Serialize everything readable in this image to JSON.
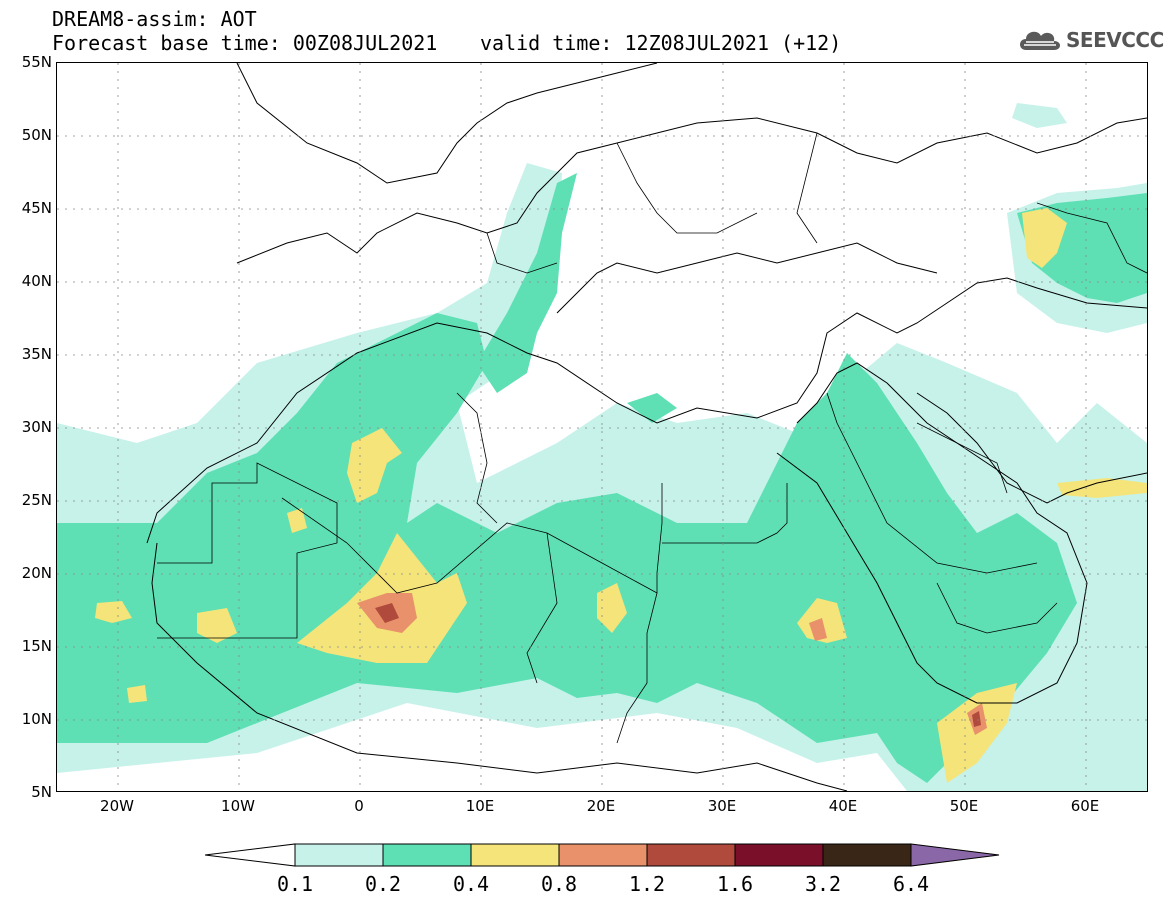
{
  "header": {
    "title": "DREAM8-assim: AOT",
    "base_time": "Forecast base time: 00Z08JUL2021",
    "valid_time": "valid time: 12Z08JUL2021 (+12)",
    "logo_text": "SEEVCCC"
  },
  "map": {
    "lat_labels": [
      "55N",
      "50N",
      "45N",
      "40N",
      "35N",
      "30N",
      "25N",
      "20N",
      "15N",
      "10N",
      "5N"
    ],
    "lon_labels": [
      "20W",
      "10W",
      "0",
      "10E",
      "20E",
      "30E",
      "40E",
      "50E",
      "60E"
    ],
    "lat_range": [
      5,
      55
    ],
    "lon_range": [
      -25,
      65
    ],
    "grid": "dotted"
  },
  "colorbar": {
    "labels": [
      "0.1",
      "0.2",
      "0.4",
      "0.8",
      "1.2",
      "1.6",
      "3.2",
      "6.4"
    ],
    "colors": [
      "#ffffff",
      "#c6f2ea",
      "#5ee0b4",
      "#f5e47a",
      "#e8916a",
      "#b04a3c",
      "#7a0f2a",
      "#3a2616",
      "#8a68a8"
    ]
  }
}
